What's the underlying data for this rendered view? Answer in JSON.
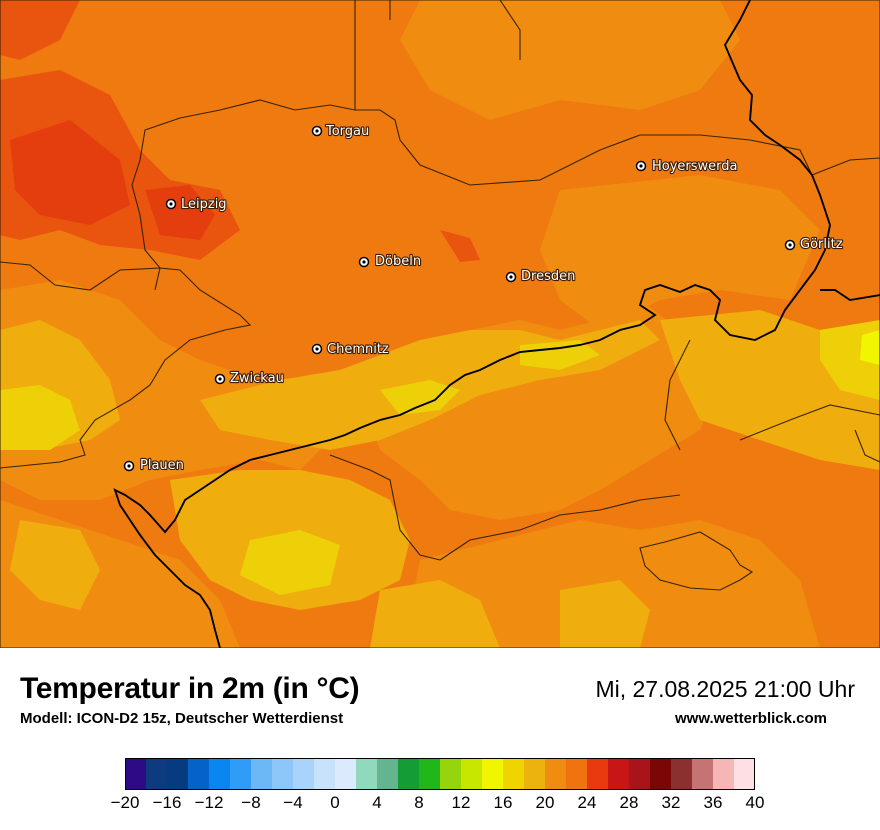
{
  "map": {
    "cities": [
      {
        "name": "Torgau"
      },
      {
        "name": "Hoyerswerda"
      },
      {
        "name": "Leipzig"
      },
      {
        "name": "Görlitz"
      },
      {
        "name": "Döbeln"
      },
      {
        "name": "Dresden"
      },
      {
        "name": "Chemnitz"
      },
      {
        "name": "Zwickau"
      },
      {
        "name": "Plauen"
      }
    ]
  },
  "footer": {
    "title": "Temperatur in 2m (in °C)",
    "model": "Modell: ICON-D2 15z, Deutscher Wetterdienst",
    "datetime": "Mi, 27.08.2025 21:00 Uhr",
    "website": "www.wetterblick.com"
  },
  "legend": {
    "unit": "°C",
    "ticks": [
      "−20",
      "−16",
      "−12",
      "−8",
      "−4",
      "0",
      "4",
      "8",
      "12",
      "16",
      "20",
      "24",
      "28",
      "32",
      "36",
      "40"
    ],
    "colors": [
      "#2e0a86",
      "#0e3a80",
      "#063c7f",
      "#0562c8",
      "#0a86f0",
      "#2f9cf7",
      "#6cb8f7",
      "#8ec6f9",
      "#a9d3fb",
      "#c9e2fc",
      "#dbeafd",
      "#90d9bd",
      "#62b58e",
      "#149d36",
      "#21b71a",
      "#96d40c",
      "#c7e600",
      "#f2f500",
      "#f0d400",
      "#ecb20e",
      "#f08c10",
      "#f07310",
      "#e83a0e",
      "#c81616",
      "#a8141a",
      "#7a0606",
      "#8b2f2f",
      "#c67373",
      "#f5b6b6",
      "#fde0e4"
    ]
  },
  "colors": {
    "temp_24": "#ef7a10",
    "temp_26": "#e8520f",
    "temp_22": "#f08e10",
    "temp_20": "#efb00d",
    "temp_18": "#edcf08"
  }
}
